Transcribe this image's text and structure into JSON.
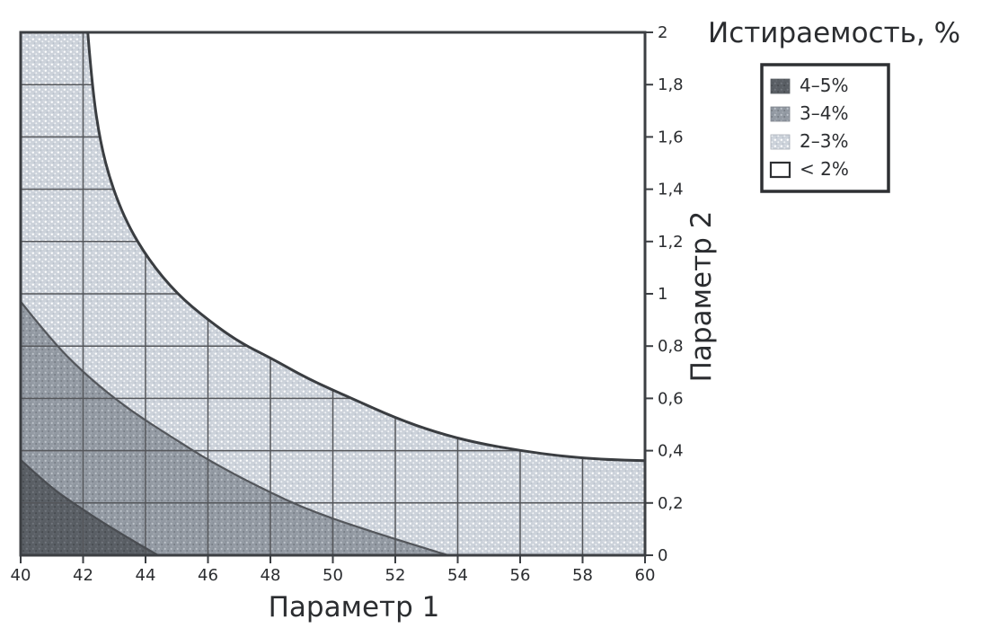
{
  "figure": {
    "background": "#ffffff"
  },
  "chart_data": {
    "type": "area",
    "subtype": "filled-contour",
    "title": "Истираемость, %",
    "xlabel": "Параметр 1",
    "ylabel": "Параметр 2",
    "xlim": [
      40,
      60
    ],
    "ylim": [
      0,
      2
    ],
    "grid": true,
    "x_tick_values": [
      40,
      42,
      44,
      46,
      48,
      50,
      52,
      54,
      56,
      58,
      60
    ],
    "x_tick_labels": [
      "40",
      "42",
      "44",
      "46",
      "48",
      "50",
      "52",
      "54",
      "56",
      "58",
      "60"
    ],
    "y_tick_values": [
      0,
      0.2,
      0.4,
      0.6,
      0.8,
      1,
      1.2,
      1.4,
      1.6,
      1.8,
      2
    ],
    "y_tick_labels": [
      "0",
      "0,2",
      "0,4",
      "0,6",
      "0,8",
      "1",
      "1,2",
      "1,4",
      "1,6",
      "1,8",
      "2"
    ],
    "legend": {
      "position": "top-right",
      "entries": [
        {
          "label": "4–5%",
          "swatch": "dark-stipple"
        },
        {
          "label": "3–4%",
          "swatch": "medium-stipple"
        },
        {
          "label": "2–3%",
          "swatch": "light-stipple"
        },
        {
          "label": "< 2%",
          "swatch": "white"
        }
      ]
    },
    "regions": [
      {
        "id": "lt2",
        "label": "< 2%",
        "fill": "white",
        "area": "upper-right",
        "boundary": [
          [
            42.15,
            2.0
          ],
          [
            42.3,
            1.78
          ],
          [
            42.55,
            1.58
          ],
          [
            42.9,
            1.42
          ],
          [
            43.4,
            1.27
          ],
          [
            44.1,
            1.13
          ],
          [
            45.0,
            1.0
          ],
          [
            46.0,
            0.9
          ],
          [
            47.0,
            0.815
          ],
          [
            48.0,
            0.755
          ],
          [
            49.2,
            0.675
          ],
          [
            50.6,
            0.6
          ],
          [
            52.0,
            0.525
          ],
          [
            53.3,
            0.47
          ],
          [
            54.6,
            0.43
          ],
          [
            56.0,
            0.4
          ],
          [
            57.4,
            0.378
          ],
          [
            58.7,
            0.366
          ],
          [
            60.0,
            0.362
          ]
        ]
      },
      {
        "id": "r23",
        "label": "2–3%",
        "fill": "light-stipple",
        "area": "remainder between < 2% boundary and 3–4% boundary"
      },
      {
        "id": "r34",
        "label": "3–4%",
        "fill": "medium-stipple",
        "area": "lower-left band",
        "boundary": [
          [
            40,
            0.97
          ],
          [
            41,
            0.82
          ],
          [
            42,
            0.7
          ],
          [
            43,
            0.6
          ],
          [
            44,
            0.515
          ],
          [
            45,
            0.44
          ],
          [
            46,
            0.365
          ],
          [
            47,
            0.3
          ],
          [
            48,
            0.24
          ],
          [
            49,
            0.185
          ],
          [
            50,
            0.14
          ],
          [
            51,
            0.1
          ],
          [
            52,
            0.062
          ],
          [
            53,
            0.025
          ],
          [
            53.7,
            0
          ]
        ]
      },
      {
        "id": "r45",
        "label": "4–5%",
        "fill": "dark-stipple",
        "area": "bottom-left corner",
        "boundary": [
          [
            40,
            0.365
          ],
          [
            40.9,
            0.265
          ],
          [
            41.8,
            0.19
          ],
          [
            42.7,
            0.12
          ],
          [
            43.6,
            0.055
          ],
          [
            44.4,
            0
          ]
        ]
      }
    ],
    "palette": {
      "light_stipple": "#ccd2da",
      "medium_stipple": "#939aa3",
      "dark_stipple": "#5a5f65",
      "white_region": "#ffffff",
      "grid": "#54565a",
      "frame": "#3c3f43",
      "boundary_line": "#3a3d41",
      "text": "#2b2d30"
    }
  }
}
